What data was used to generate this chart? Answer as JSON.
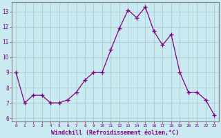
{
  "x": [
    0,
    1,
    2,
    3,
    4,
    5,
    6,
    7,
    8,
    9,
    10,
    11,
    12,
    13,
    14,
    15,
    16,
    17,
    18,
    19,
    20,
    21,
    22,
    23
  ],
  "y": [
    9,
    7,
    7.5,
    7.5,
    7,
    7,
    7.2,
    7.7,
    8.5,
    9,
    9,
    10.5,
    11.9,
    13.1,
    12.6,
    13.3,
    11.7,
    10.8,
    11.5,
    9,
    7.7,
    7.7,
    7.2,
    6.2
  ],
  "line_color": "#800080",
  "marker": "+",
  "marker_color": "#800080",
  "bg_color": "#c8eaf0",
  "grid_color": "#b0c8d0",
  "xlabel": "Windchill (Refroidissement éolien,°C)",
  "xlabel_color": "#800080",
  "tick_color": "#800080",
  "ylim": [
    5.8,
    13.6
  ],
  "yticks": [
    6,
    7,
    8,
    9,
    10,
    11,
    12,
    13
  ],
  "xticks": [
    0,
    1,
    2,
    3,
    4,
    5,
    6,
    7,
    8,
    9,
    10,
    11,
    12,
    13,
    14,
    15,
    16,
    17,
    18,
    19,
    20,
    21,
    22,
    23
  ],
  "spine_color": "#808080"
}
